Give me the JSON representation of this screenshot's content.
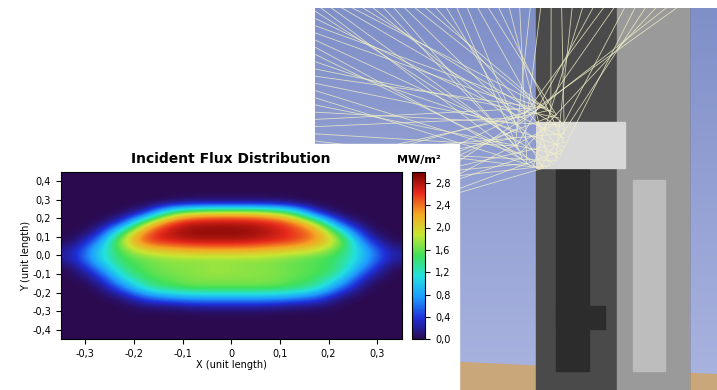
{
  "chart_data": {
    "type": "heatmap",
    "title": "Incident Flux Distribution",
    "x_label": "X (unit length)",
    "y_label": "Y (unit length)",
    "xlim": [
      -0.35,
      0.35
    ],
    "ylim": [
      -0.45,
      0.45
    ],
    "xticks": [
      {
        "value": -0.3,
        "label": "-0,3"
      },
      {
        "value": -0.2,
        "label": "-0,2"
      },
      {
        "value": -0.1,
        "label": "-0,1"
      },
      0,
      {
        "value": 0.1,
        "label": "0,1"
      },
      {
        "value": 0.2,
        "label": "0,2"
      },
      {
        "value": 0.3,
        "label": "0,3"
      }
    ],
    "yticks": [
      {
        "value": -0.4,
        "label": "-0,4"
      },
      {
        "value": -0.3,
        "label": "-0,3"
      },
      {
        "value": -0.2,
        "label": "-0,2"
      },
      {
        "value": -0.1,
        "label": "-0,1"
      },
      {
        "value": 0.0,
        "label": "0,0"
      },
      {
        "value": 0.1,
        "label": "0,1"
      },
      {
        "value": 0.2,
        "label": "0,2"
      },
      {
        "value": 0.3,
        "label": "0,3"
      },
      {
        "value": 0.4,
        "label": "0,4"
      }
    ],
    "cells": [
      [
        0,
        0,
        0,
        0,
        0,
        0,
        0,
        0,
        0,
        0,
        0,
        0,
        0,
        0
      ],
      [
        0,
        0,
        0,
        0,
        0,
        0,
        0,
        0,
        0,
        0,
        0,
        0,
        0,
        0
      ],
      [
        0,
        0,
        0,
        0,
        0,
        0,
        0,
        0,
        0,
        0,
        0,
        0,
        0,
        0
      ],
      [
        0,
        0,
        0,
        0,
        0.1,
        0.2,
        0.2,
        0.2,
        0.2,
        0.1,
        0,
        0,
        0,
        0
      ],
      [
        0,
        0,
        0,
        0.3,
        1.6,
        2.0,
        2.1,
        2.1,
        2.0,
        1.6,
        0.3,
        0,
        0,
        0
      ],
      [
        0,
        0,
        0.3,
        1.8,
        2.6,
        2.8,
        2.8,
        2.8,
        2.7,
        2.5,
        1.8,
        0.3,
        0,
        0
      ],
      [
        0,
        0.1,
        1.4,
        2.5,
        2.8,
        2.9,
        2.9,
        2.9,
        2.8,
        2.6,
        2.4,
        1.3,
        0.1,
        0
      ],
      [
        0,
        0.6,
        1.9,
        2.6,
        2.7,
        2.8,
        2.8,
        2.8,
        2.7,
        2.6,
        2.3,
        1.8,
        0.5,
        0
      ],
      [
        0.2,
        1.0,
        1.6,
        2.0,
        2.1,
        2.2,
        2.2,
        2.2,
        2.1,
        2.0,
        1.9,
        1.5,
        0.9,
        0.2
      ],
      [
        0.2,
        1.0,
        1.5,
        1.6,
        1.7,
        1.7,
        1.7,
        1.7,
        1.7,
        1.6,
        1.5,
        1.4,
        0.9,
        0.2
      ],
      [
        0,
        0.6,
        1.4,
        1.6,
        1.7,
        1.7,
        1.8,
        1.7,
        1.7,
        1.6,
        1.6,
        1.4,
        0.6,
        0
      ],
      [
        0,
        0.2,
        1.1,
        1.5,
        1.6,
        1.7,
        1.7,
        1.7,
        1.7,
        1.6,
        1.5,
        1.1,
        0.2,
        0
      ],
      [
        0,
        0,
        0.6,
        1.3,
        1.5,
        1.6,
        1.6,
        1.6,
        1.6,
        1.5,
        1.3,
        0.6,
        0,
        0
      ],
      [
        0,
        0,
        0.1,
        0.6,
        0.8,
        0.9,
        0.9,
        0.9,
        0.9,
        0.8,
        0.6,
        0.1,
        0,
        0
      ],
      [
        0,
        0,
        0,
        0.1,
        0.1,
        0.2,
        0.2,
        0.2,
        0.2,
        0.1,
        0.1,
        0,
        0,
        0
      ],
      [
        0,
        0,
        0,
        0,
        0,
        0,
        0,
        0,
        0,
        0,
        0,
        0,
        0,
        0
      ],
      [
        0,
        0,
        0,
        0,
        0,
        0,
        0,
        0,
        0,
        0,
        0,
        0,
        0,
        0
      ],
      [
        0,
        0,
        0,
        0,
        0,
        0,
        0,
        0,
        0,
        0,
        0,
        0,
        0,
        0
      ]
    ],
    "colorbar": {
      "label": "MW/m²",
      "range": [
        0,
        3.0
      ],
      "ticks": [
        {
          "value": 0.0,
          "label": "0,0"
        },
        {
          "value": 0.4,
          "label": "0,4"
        },
        {
          "value": 0.8,
          "label": "0,8"
        },
        {
          "value": 1.2,
          "label": "1,2"
        },
        {
          "value": 1.6,
          "label": "1,6"
        },
        {
          "value": 2.0,
          "label": "2,0"
        },
        {
          "value": 2.4,
          "label": "2,4"
        },
        {
          "value": 2.8,
          "label": "2,8"
        }
      ]
    }
  }
}
